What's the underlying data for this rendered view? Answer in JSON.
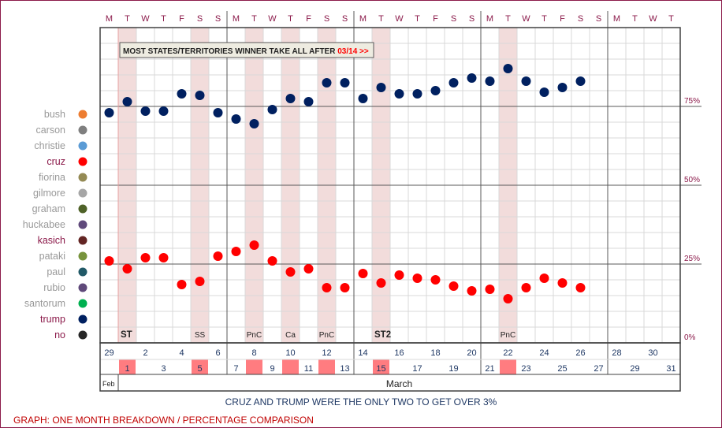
{
  "chart_data": {
    "type": "scatter",
    "weekday_letters": [
      "M",
      "T",
      "W",
      "T",
      "F",
      "S",
      "S",
      "M",
      "T",
      "W",
      "T",
      "F",
      "S",
      "S",
      "M",
      "T",
      "W",
      "T",
      "F",
      "S",
      "S",
      "M",
      "T",
      "W",
      "T",
      "F",
      "S",
      "S",
      "M",
      "T",
      "W",
      "T"
    ],
    "day_numbers": [
      29,
      1,
      2,
      3,
      4,
      5,
      6,
      7,
      8,
      9,
      10,
      11,
      12,
      13,
      14,
      15,
      16,
      17,
      18,
      19,
      20,
      21,
      22,
      23,
      24,
      25,
      26,
      27,
      28,
      29,
      30,
      31
    ],
    "highlight_days": [
      1,
      5,
      8,
      10,
      12,
      15,
      22
    ],
    "month_labels": {
      "feb": "Feb",
      "march": "March"
    },
    "events": [
      {
        "col": 1,
        "label": "ST",
        "bold": true
      },
      {
        "col": 5,
        "label": "SS",
        "bold": false
      },
      {
        "col": 8,
        "label": "PnC",
        "bold": false
      },
      {
        "col": 10,
        "label": "Ca",
        "bold": false
      },
      {
        "col": 12,
        "label": "PnC",
        "bold": false
      },
      {
        "col": 15,
        "label": "ST2",
        "bold": true
      },
      {
        "col": 22,
        "label": "PnC",
        "bold": false
      }
    ],
    "y_ticks": [
      "0%",
      "25%",
      "50%",
      "75%"
    ],
    "ylim": [
      0,
      100
    ],
    "banner": {
      "text": "MOST STATES/TERRITORIES WINNER TAKE ALL AFTER",
      "date": "03/14 >>"
    },
    "legend": [
      {
        "name": "bush",
        "color": "#ED7D31",
        "highlight": false
      },
      {
        "name": "carson",
        "color": "#7F7F7F",
        "highlight": false
      },
      {
        "name": "christie",
        "color": "#5B9BD5",
        "highlight": false
      },
      {
        "name": "cruz",
        "color": "#FF0000",
        "highlight": true
      },
      {
        "name": "fiorina",
        "color": "#948A54",
        "highlight": false
      },
      {
        "name": "gilmore",
        "color": "#A6A6A6",
        "highlight": false
      },
      {
        "name": "graham",
        "color": "#4F6228",
        "highlight": false
      },
      {
        "name": "huckabee",
        "color": "#604A7B",
        "highlight": false
      },
      {
        "name": "kasich",
        "color": "#632523",
        "highlight": true
      },
      {
        "name": "pataki",
        "color": "#77933C",
        "highlight": false
      },
      {
        "name": "paul",
        "color": "#215967",
        "highlight": false
      },
      {
        "name": "rubio",
        "color": "#5F497A",
        "highlight": false
      },
      {
        "name": "santorum",
        "color": "#00B050",
        "highlight": false
      },
      {
        "name": "trump",
        "color": "#002060",
        "highlight": true
      },
      {
        "name": "no",
        "color": "#262626",
        "highlight": true
      }
    ],
    "series": [
      {
        "name": "trump",
        "color": "#002060",
        "points": [
          [
            0,
            73
          ],
          [
            1,
            76.5
          ],
          [
            2,
            73.5
          ],
          [
            3,
            73.5
          ],
          [
            4,
            79
          ],
          [
            5,
            78.5
          ],
          [
            6,
            73
          ],
          [
            7,
            71
          ],
          [
            8,
            69.5
          ],
          [
            9,
            74
          ],
          [
            10,
            77.5
          ],
          [
            11,
            76.5
          ],
          [
            12,
            82.5
          ],
          [
            13,
            82.5
          ],
          [
            14,
            77.5
          ],
          [
            15,
            81
          ],
          [
            16,
            79
          ],
          [
            17,
            79
          ],
          [
            18,
            80
          ],
          [
            19,
            82.5
          ],
          [
            20,
            84
          ],
          [
            21,
            83
          ],
          [
            22,
            87
          ],
          [
            23,
            83
          ],
          [
            24,
            79.5
          ],
          [
            25,
            81
          ],
          [
            26,
            83
          ]
        ]
      },
      {
        "name": "cruz",
        "color": "#FF0000",
        "points": [
          [
            0,
            26
          ],
          [
            1,
            23.5
          ],
          [
            2,
            27
          ],
          [
            3,
            27
          ],
          [
            4,
            18.5
          ],
          [
            5,
            19.5
          ],
          [
            6,
            27.5
          ],
          [
            7,
            29
          ],
          [
            8,
            31
          ],
          [
            9,
            26
          ],
          [
            10,
            22.5
          ],
          [
            11,
            23.5
          ],
          [
            12,
            17.5
          ],
          [
            13,
            17.5
          ],
          [
            14,
            22
          ],
          [
            15,
            19
          ],
          [
            16,
            21.5
          ],
          [
            17,
            20.5
          ],
          [
            18,
            20
          ],
          [
            19,
            18
          ],
          [
            20,
            16.5
          ],
          [
            21,
            17
          ],
          [
            22,
            14
          ],
          [
            23,
            17.5
          ],
          [
            24,
            20.5
          ],
          [
            25,
            19
          ],
          [
            26,
            17.5
          ]
        ]
      }
    ]
  },
  "caption": "CRUZ AND TRUMP WERE THE ONLY TWO TO GET OVER 3%",
  "graph_label": "GRAPH: ONE MONTH BREAKDOWN / PERCENTAGE COMPARISON"
}
